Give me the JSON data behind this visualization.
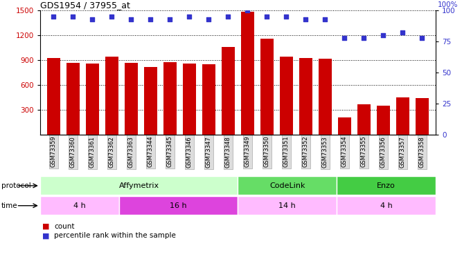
{
  "title": "GDS1954 / 37955_at",
  "samples": [
    "GSM73359",
    "GSM73360",
    "GSM73361",
    "GSM73362",
    "GSM73363",
    "GSM73344",
    "GSM73345",
    "GSM73346",
    "GSM73347",
    "GSM73348",
    "GSM73349",
    "GSM73350",
    "GSM73351",
    "GSM73352",
    "GSM73353",
    "GSM73354",
    "GSM73355",
    "GSM73356",
    "GSM73357",
    "GSM73358"
  ],
  "counts": [
    930,
    870,
    860,
    940,
    870,
    820,
    880,
    860,
    850,
    1060,
    1480,
    1160,
    940,
    930,
    920,
    215,
    370,
    355,
    450,
    440
  ],
  "percentiles": [
    95,
    95,
    93,
    95,
    93,
    93,
    93,
    95,
    93,
    95,
    100,
    95,
    95,
    93,
    93,
    78,
    78,
    80,
    82,
    78
  ],
  "ylim_left": [
    0,
    1500
  ],
  "ylim_right": [
    0,
    100
  ],
  "yticks_left": [
    300,
    600,
    900,
    1200,
    1500
  ],
  "yticks_right": [
    0,
    25,
    50,
    75,
    100
  ],
  "bar_color": "#cc0000",
  "dot_color": "#3333cc",
  "protocol_groups": [
    {
      "label": "Affymetrix",
      "start": 0,
      "end": 9,
      "color": "#ccffcc"
    },
    {
      "label": "CodeLink",
      "start": 10,
      "end": 14,
      "color": "#66dd66"
    },
    {
      "label": "Enzo",
      "start": 15,
      "end": 19,
      "color": "#44cc44"
    }
  ],
  "time_groups": [
    {
      "label": "4 h",
      "start": 0,
      "end": 3,
      "color": "#ffbbff"
    },
    {
      "label": "16 h",
      "start": 4,
      "end": 9,
      "color": "#dd44dd"
    },
    {
      "label": "14 h",
      "start": 10,
      "end": 14,
      "color": "#ffbbff"
    },
    {
      "label": "4 h",
      "start": 15,
      "end": 19,
      "color": "#ffbbff"
    }
  ],
  "background_color": "#ffffff"
}
